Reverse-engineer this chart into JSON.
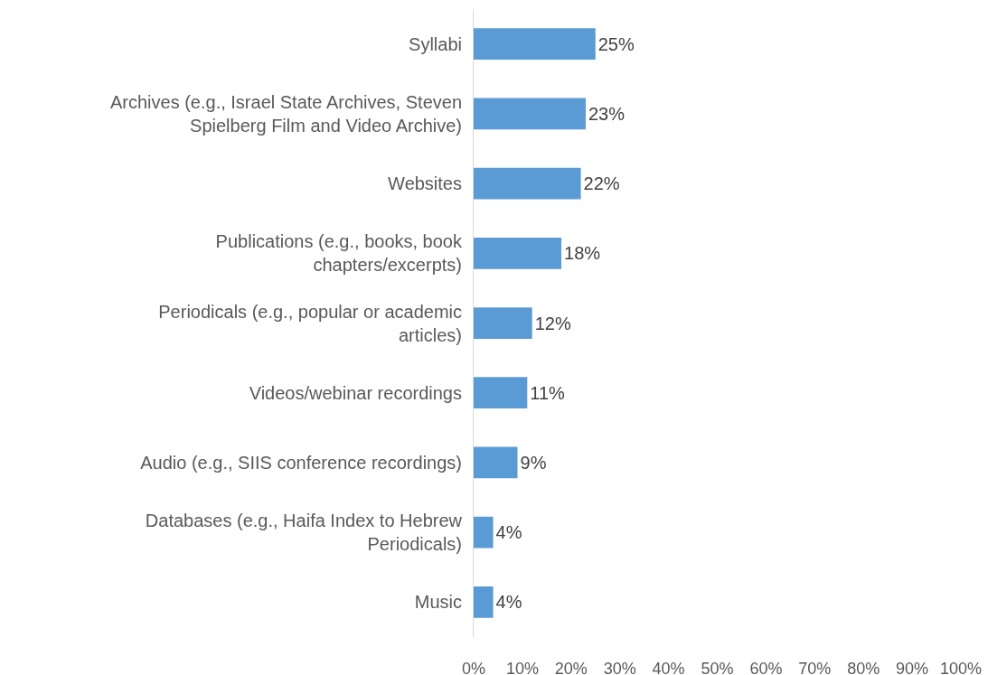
{
  "chart_data": {
    "type": "bar",
    "orientation": "horizontal",
    "categories": [
      "Syllabi",
      "Archives (e.g., Israel State Archives, Steven Spielberg Film and Video Archive)",
      "Websites",
      "Publications (e.g., books, book chapters/excerpts)",
      "Periodicals (e.g., popular or academic articles)",
      "Videos/webinar recordings",
      "Audio (e.g., SIIS conference recordings)",
      "Databases (e.g., Haifa Index to Hebrew Periodicals)",
      "Music"
    ],
    "values": [
      25,
      23,
      22,
      18,
      12,
      11,
      9,
      4,
      4
    ],
    "value_labels": [
      "25%",
      "23%",
      "22%",
      "18%",
      "12%",
      "11%",
      "9%",
      "4%",
      "4%"
    ],
    "color": "#5b9bd5",
    "xlim": [
      0,
      100
    ],
    "xticks": [
      {
        "value": 0,
        "label": "0%"
      },
      {
        "value": 10,
        "label": "10%"
      },
      {
        "value": 20,
        "label": "20%"
      },
      {
        "value": 30,
        "label": "30%"
      },
      {
        "value": 40,
        "label": "40%"
      },
      {
        "value": 50,
        "label": "50%"
      },
      {
        "value": 60,
        "label": "60%"
      },
      {
        "value": 70,
        "label": "70%"
      },
      {
        "value": 80,
        "label": "80%"
      },
      {
        "value": 90,
        "label": "90%"
      },
      {
        "value": 100,
        "label": "100%"
      }
    ],
    "grid": false
  }
}
